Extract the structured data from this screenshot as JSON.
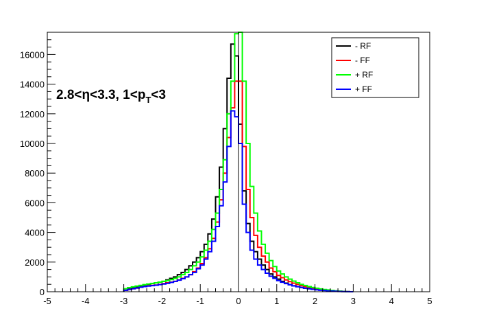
{
  "chart_data": {
    "type": "line",
    "title": "",
    "xlabel": "",
    "ylabel": "",
    "xlim": [
      -5,
      5
    ],
    "ylim": [
      0,
      17500
    ],
    "x_ticks": [
      -5,
      -4,
      -3,
      -2,
      -1,
      0,
      1,
      2,
      3,
      4,
      5
    ],
    "y_ticks": [
      0,
      2000,
      4000,
      6000,
      8000,
      10000,
      12000,
      14000,
      16000
    ],
    "grid": false,
    "legend_position": "top-right",
    "annotation": {
      "prefix": "2.8<η<3.3, 1<p",
      "subscript": "T",
      "suffix": "<3"
    },
    "x": [
      -2.95,
      -2.85,
      -2.75,
      -2.65,
      -2.55,
      -2.45,
      -2.35,
      -2.25,
      -2.15,
      -2.05,
      -1.95,
      -1.85,
      -1.75,
      -1.65,
      -1.55,
      -1.45,
      -1.35,
      -1.25,
      -1.15,
      -1.05,
      -0.95,
      -0.85,
      -0.75,
      -0.65,
      -0.55,
      -0.45,
      -0.35,
      -0.25,
      -0.15,
      -0.05,
      0.05,
      0.15,
      0.25,
      0.35,
      0.45,
      0.55,
      0.65,
      0.75,
      0.85,
      0.95,
      1.05,
      1.15,
      1.25,
      1.35,
      1.45,
      1.55,
      1.65,
      1.75,
      1.85,
      1.95,
      2.05,
      2.15,
      2.25,
      2.35,
      2.45,
      2.55,
      2.65,
      2.75,
      2.85,
      2.95
    ],
    "series": [
      {
        "name": "- RF",
        "color": "#000000",
        "values": [
          100,
          250,
          300,
          350,
          400,
          450,
          500,
          550,
          600,
          650,
          700,
          800,
          900,
          1000,
          1150,
          1300,
          1500,
          1750,
          2000,
          2300,
          2700,
          3200,
          3900,
          4900,
          6400,
          8400,
          11000,
          14400,
          16700,
          15900,
          11300,
          6800,
          4600,
          3400,
          2700,
          2200,
          1800,
          1500,
          1200,
          1000,
          850,
          700,
          580,
          480,
          400,
          340,
          290,
          240,
          200,
          170,
          140,
          120,
          100,
          80,
          60,
          45,
          30,
          15,
          5,
          0
        ]
      },
      {
        "name": "- FF",
        "color": "#ff0000",
        "values": [
          100,
          150,
          200,
          250,
          300,
          350,
          400,
          420,
          450,
          500,
          550,
          600,
          650,
          700,
          800,
          900,
          1000,
          1150,
          1350,
          1600,
          1900,
          2300,
          2900,
          3600,
          4700,
          6200,
          8000,
          10400,
          12400,
          14200,
          14200,
          9800,
          6900,
          5000,
          3800,
          3000,
          2400,
          2000,
          1600,
          1350,
          1100,
          950,
          800,
          680,
          580,
          490,
          410,
          340,
          280,
          230,
          190,
          150,
          120,
          90,
          70,
          50,
          35,
          20,
          8,
          0
        ]
      },
      {
        "name": "+ RF",
        "color": "#00ff00",
        "values": [
          200,
          280,
          330,
          380,
          430,
          480,
          520,
          560,
          600,
          650,
          700,
          750,
          820,
          900,
          1000,
          1150,
          1300,
          1500,
          1750,
          2000,
          2350,
          2800,
          3400,
          4200,
          5300,
          6900,
          8900,
          12000,
          14200,
          17400,
          17500,
          14200,
          10000,
          7100,
          5300,
          4100,
          3200,
          2600,
          2100,
          1700,
          1400,
          1200,
          1000,
          850,
          720,
          600,
          500,
          420,
          350,
          290,
          240,
          190,
          150,
          120,
          90,
          60,
          40,
          20,
          8,
          0
        ]
      },
      {
        "name": "+ FF",
        "color": "#0000ff",
        "values": [
          100,
          150,
          200,
          250,
          300,
          350,
          380,
          410,
          440,
          480,
          520,
          570,
          630,
          700,
          780,
          880,
          1000,
          1150,
          1300,
          1550,
          1800,
          2200,
          2700,
          3400,
          4400,
          5800,
          7400,
          9800,
          12200,
          11800,
          10000,
          5900,
          4000,
          2800,
          2200,
          1800,
          1500,
          1250,
          1050,
          900,
          750,
          640,
          550,
          470,
          400,
          340,
          290,
          240,
          200,
          160,
          130,
          100,
          80,
          60,
          45,
          32,
          20,
          10,
          4,
          0
        ]
      }
    ]
  }
}
